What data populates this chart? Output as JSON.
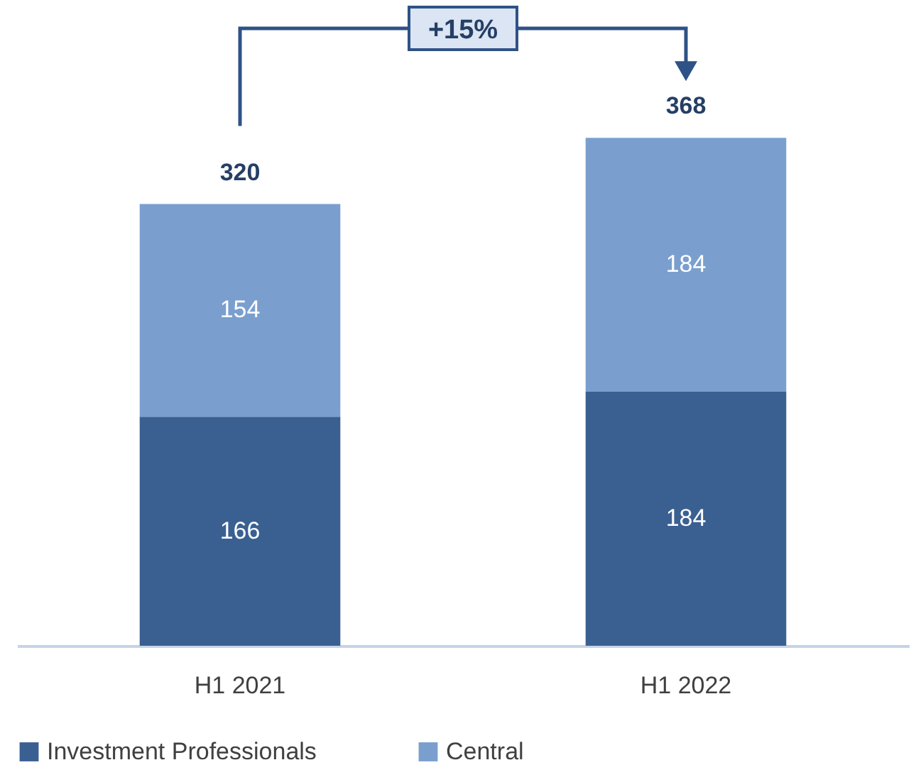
{
  "chart_data": {
    "type": "bar",
    "stacked": true,
    "categories": [
      "H1 2021",
      "H1 2022"
    ],
    "series": [
      {
        "name": "Investment Professionals",
        "color": "#3a6092",
        "values": [
          166,
          184
        ]
      },
      {
        "name": "Central",
        "color": "#7a9fcf",
        "values": [
          154,
          184
        ]
      }
    ],
    "data_labels": true,
    "totals": [
      "320",
      "368"
    ],
    "annotations": [
      "+15%"
    ],
    "legend": "bottom"
  }
}
